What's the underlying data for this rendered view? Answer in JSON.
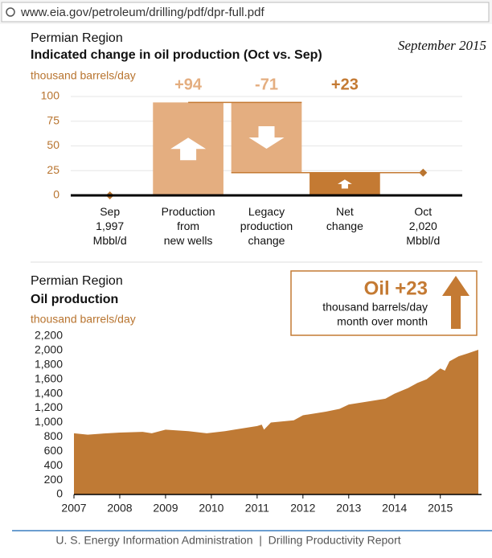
{
  "browser": {
    "url": "www.eia.gov/petroleum/drilling/pdf/dpr-full.pdf"
  },
  "chart_data": [
    {
      "type": "waterfall",
      "title": "Permian Region",
      "subtitle": "Indicated change in oil production (Oct vs. Sep)",
      "date": "September 2015",
      "y_label": "thousand barrels/day",
      "categories": [
        "Sep\n1,997\nMbbl/d",
        "Production\nfrom\nnew wells",
        "Legacy\nproduction\nchange",
        "Net\nchange",
        "Oct\n2,020\nMbbl/d"
      ],
      "values": [
        0,
        94,
        -71,
        23,
        23
      ],
      "value_labels": [
        null,
        "+94",
        "-71",
        "+23",
        null
      ],
      "colors": [
        "#b8742f",
        "#e4ae80",
        "#e4ae80",
        "#c47a33",
        "#b8742f"
      ],
      "ylim": [
        0,
        100
      ],
      "yticks": [
        0,
        25,
        50,
        75,
        100
      ],
      "grid": true
    },
    {
      "type": "area",
      "title": "Permian Region",
      "subtitle": "Oil production",
      "y_label": "thousand barrels/day",
      "color": "#bf7a35",
      "x": [
        2007,
        2007.3,
        2007.6,
        2008,
        2008.5,
        2008.7,
        2009,
        2009.5,
        2009.9,
        2010.3,
        2010.5,
        2011,
        2011.1,
        2011.15,
        2011.3,
        2011.8,
        2012,
        2012.5,
        2012.8,
        2013,
        2013.5,
        2013.8,
        2014,
        2014.3,
        2014.5,
        2014.7,
        2014.9,
        2015,
        2015.1,
        2015.2,
        2015.4,
        2015.6,
        2015.83
      ],
      "values": [
        850,
        830,
        845,
        860,
        870,
        850,
        900,
        880,
        850,
        880,
        900,
        950,
        970,
        900,
        1000,
        1030,
        1100,
        1150,
        1190,
        1250,
        1300,
        1330,
        1400,
        1480,
        1550,
        1600,
        1700,
        1750,
        1720,
        1850,
        1920,
        1960,
        2010
      ],
      "xlim": [
        2007,
        2015.83
      ],
      "xticks": [
        2007,
        2008,
        2009,
        2010,
        2011,
        2012,
        2013,
        2014,
        2015
      ],
      "ylim": [
        0,
        2200
      ],
      "yticks": [
        0,
        200,
        400,
        600,
        800,
        {
          "value": 1000,
          "label": "1,000"
        },
        {
          "value": 1200,
          "label": "1,200"
        },
        {
          "value": 1400,
          "label": "1,400"
        },
        {
          "value": 1600,
          "label": "1,600"
        },
        {
          "value": 1800,
          "label": "1,800"
        },
        {
          "value": 2000,
          "label": "2,000"
        },
        {
          "value": 2200,
          "label": "2,200"
        }
      ],
      "annotation": {
        "headline": "Oil +23",
        "lines": [
          "thousand barrels/day",
          "month over month"
        ]
      }
    }
  ],
  "footer": "U. S. Energy Information Administration  |  Drilling Productivity Report"
}
